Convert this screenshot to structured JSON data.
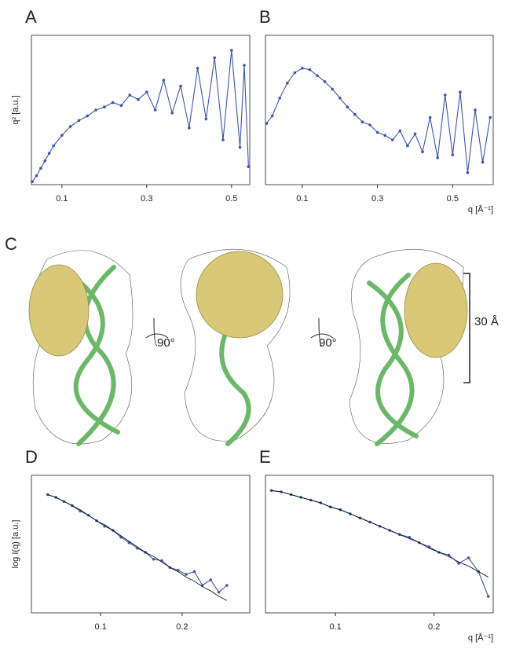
{
  "chart_data": [
    {
      "type": "line",
      "panel": "A",
      "y_label": "q² [a.u.]",
      "xlim": [
        0.028,
        0.543
      ],
      "xticks": [
        0.1,
        0.3,
        0.5
      ],
      "ylim": [
        0,
        1
      ],
      "x": [
        0.03,
        0.04,
        0.05,
        0.06,
        0.07,
        0.08,
        0.1,
        0.12,
        0.14,
        0.16,
        0.18,
        0.2,
        0.22,
        0.24,
        0.26,
        0.28,
        0.3,
        0.32,
        0.34,
        0.36,
        0.38,
        0.4,
        0.42,
        0.44,
        0.46,
        0.48,
        0.5,
        0.52,
        0.53,
        0.54
      ],
      "series": [
        {
          "color": "#3a56a8",
          "markers": true,
          "values": [
            0.02,
            0.06,
            0.11,
            0.16,
            0.21,
            0.26,
            0.33,
            0.39,
            0.43,
            0.46,
            0.5,
            0.52,
            0.55,
            0.53,
            0.6,
            0.57,
            0.62,
            0.5,
            0.7,
            0.48,
            0.66,
            0.38,
            0.78,
            0.44,
            0.85,
            0.3,
            0.9,
            0.25,
            0.8,
            0.12
          ]
        }
      ]
    },
    {
      "type": "line",
      "panel": "B",
      "x_label": "q [Å⁻¹]",
      "xlim": [
        0.002,
        0.608
      ],
      "xticks": [
        0.1,
        0.3,
        0.5
      ],
      "ylim": [
        0,
        1
      ],
      "x": [
        0.005,
        0.02,
        0.04,
        0.06,
        0.08,
        0.1,
        0.12,
        0.14,
        0.16,
        0.18,
        0.2,
        0.22,
        0.24,
        0.26,
        0.28,
        0.3,
        0.32,
        0.34,
        0.36,
        0.38,
        0.4,
        0.42,
        0.44,
        0.46,
        0.48,
        0.5,
        0.52,
        0.54,
        0.56,
        0.58,
        0.6
      ],
      "series": [
        {
          "color": "#3a56a8",
          "markers": true,
          "values": [
            0.41,
            0.46,
            0.58,
            0.68,
            0.75,
            0.78,
            0.77,
            0.73,
            0.69,
            0.64,
            0.58,
            0.52,
            0.47,
            0.42,
            0.4,
            0.35,
            0.33,
            0.3,
            0.36,
            0.26,
            0.34,
            0.22,
            0.45,
            0.18,
            0.6,
            0.2,
            0.62,
            0.08,
            0.5,
            0.15,
            0.45
          ]
        }
      ]
    },
    {
      "type": "line",
      "panel": "D",
      "y_label": "log I(q) [a.u.]",
      "xlim": [
        0.015,
        0.283
      ],
      "xticks": [
        0.1,
        0.2
      ],
      "ylim": [
        0,
        1
      ],
      "x": [
        0.035,
        0.045,
        0.055,
        0.065,
        0.075,
        0.085,
        0.095,
        0.105,
        0.115,
        0.125,
        0.135,
        0.145,
        0.155,
        0.165,
        0.175,
        0.185,
        0.195,
        0.205,
        0.215,
        0.225,
        0.235,
        0.245,
        0.255
      ],
      "series": [
        {
          "color": "#3a56a8",
          "markers": true,
          "values": [
            0.86,
            0.84,
            0.81,
            0.78,
            0.74,
            0.71,
            0.67,
            0.63,
            0.6,
            0.55,
            0.51,
            0.47,
            0.44,
            0.39,
            0.38,
            0.33,
            0.31,
            0.28,
            0.3,
            0.2,
            0.24,
            0.15,
            0.2
          ]
        },
        {
          "color": "#000000",
          "markers": false,
          "values": [
            0.86,
            0.84,
            0.81,
            0.78,
            0.75,
            0.71,
            0.67,
            0.64,
            0.6,
            0.56,
            0.52,
            0.48,
            0.44,
            0.41,
            0.37,
            0.33,
            0.3,
            0.26,
            0.23,
            0.19,
            0.16,
            0.12,
            0.09
          ]
        }
      ]
    },
    {
      "type": "line",
      "panel": "E",
      "x_label": "q [Å⁻¹]",
      "xlim": [
        0.029,
        0.26
      ],
      "xticks": [
        0.1,
        0.2
      ],
      "ylim": [
        0,
        1
      ],
      "x": [
        0.035,
        0.045,
        0.055,
        0.065,
        0.075,
        0.085,
        0.095,
        0.105,
        0.115,
        0.125,
        0.135,
        0.145,
        0.155,
        0.165,
        0.175,
        0.185,
        0.195,
        0.205,
        0.215,
        0.225,
        0.235,
        0.245,
        0.255
      ],
      "series": [
        {
          "color": "#3a56a8",
          "markers": true,
          "values": [
            0.89,
            0.88,
            0.86,
            0.84,
            0.82,
            0.8,
            0.77,
            0.75,
            0.72,
            0.69,
            0.66,
            0.63,
            0.6,
            0.57,
            0.55,
            0.51,
            0.48,
            0.44,
            0.42,
            0.36,
            0.4,
            0.3,
            0.12
          ]
        },
        {
          "color": "#000000",
          "markers": false,
          "values": [
            0.89,
            0.88,
            0.86,
            0.84,
            0.82,
            0.8,
            0.77,
            0.75,
            0.72,
            0.69,
            0.66,
            0.63,
            0.6,
            0.57,
            0.54,
            0.51,
            0.47,
            0.44,
            0.41,
            0.37,
            0.34,
            0.3,
            0.26
          ]
        }
      ]
    }
  ],
  "figure_c": {
    "panel": "C",
    "rotations": [
      "90°",
      "90°"
    ],
    "scale": "30 Å"
  }
}
